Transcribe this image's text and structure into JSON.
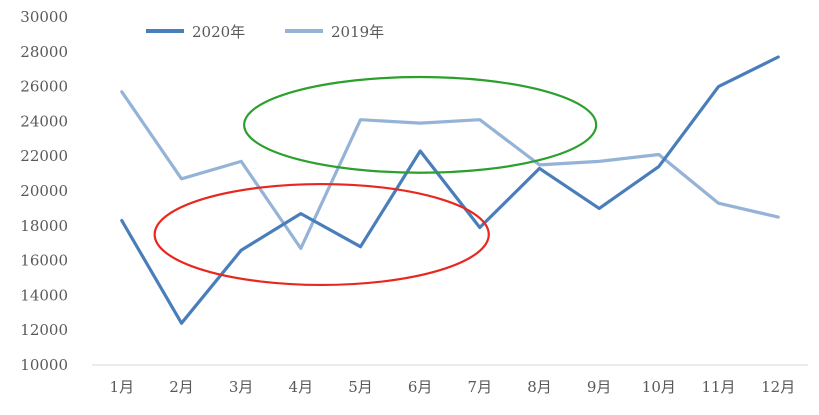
{
  "chart_data": {
    "type": "line",
    "categories": [
      "1月",
      "2月",
      "3月",
      "4月",
      "5月",
      "6月",
      "7月",
      "8月",
      "9月",
      "10月",
      "11月",
      "12月"
    ],
    "series": [
      {
        "name": "2020年",
        "color": "#4A7EBB",
        "values": [
          18300,
          12400,
          16600,
          18700,
          16800,
          22300,
          17900,
          21300,
          19000,
          21400,
          26000,
          27700
        ]
      },
      {
        "name": "2019年",
        "color": "#95B3D7",
        "values": [
          25700,
          20700,
          21700,
          16700,
          24100,
          23900,
          24100,
          21500,
          21700,
          22100,
          19300,
          18500
        ]
      }
    ],
    "yticks": [
      10000,
      12000,
      14000,
      16000,
      18000,
      20000,
      22000,
      24000,
      26000,
      28000,
      30000
    ],
    "ylim": [
      10000,
      30000
    ],
    "grid": false,
    "legend_position": "top-left",
    "annotations": [
      {
        "shape": "ellipse",
        "color": "#2CA02C",
        "cx": 6,
        "cy": 23800,
        "rx_categories": 2.95,
        "ry_value": 2750
      },
      {
        "shape": "ellipse",
        "color": "#E8281E",
        "cx": 4.35,
        "cy": 17500,
        "rx_categories": 2.8,
        "ry_value": 2900
      }
    ]
  }
}
